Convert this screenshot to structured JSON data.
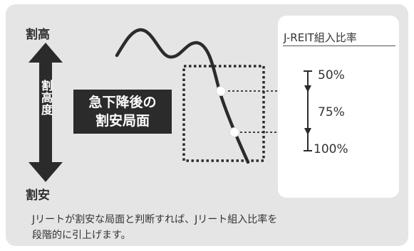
{
  "scale": {
    "top_label": "割高",
    "bottom_label": "割安",
    "axis_label": "割高度"
  },
  "callout": {
    "line1": "急下降後の",
    "line2": "割安局面"
  },
  "panel": {
    "title": "J-REIT組入比率",
    "ratios": [
      "50%",
      "75%",
      "100%"
    ]
  },
  "note": {
    "line1": "Jリートが割安な局面と判断すれば、Jリート組入比率を",
    "line2": "段階的に引上げます。"
  },
  "colors": {
    "background": "#e5e5e5",
    "dark": "#2b2b2b",
    "white": "#ffffff"
  }
}
